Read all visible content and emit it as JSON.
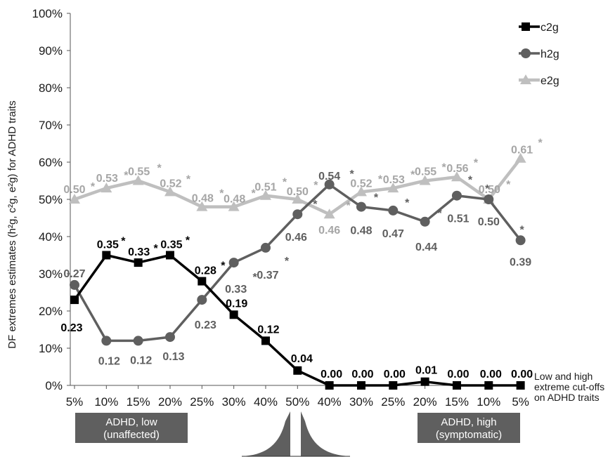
{
  "chart_data": {
    "type": "line",
    "ylabel": "DF extremes estimates (h²g, c²g, e²g) for ADHD traits",
    "categories": [
      "5%",
      "10%",
      "15%",
      "20%",
      "25%",
      "30%",
      "40%",
      "50%",
      "40%",
      "30%",
      "25%",
      "20%",
      "15%",
      "10%",
      "5%"
    ],
    "yticks": [
      "0%",
      "10%",
      "20%",
      "30%",
      "40%",
      "50%",
      "60%",
      "70%",
      "80%",
      "90%",
      "100%"
    ],
    "ylim": [
      0,
      1
    ],
    "grid": false,
    "legend_position": "top-right",
    "x_note": [
      "Low and high",
      "extreme cut-offs",
      "on ADHD traits"
    ],
    "series": [
      {
        "name": "c2g",
        "color": "#000000",
        "marker": "square",
        "values": [
          0.23,
          0.35,
          0.33,
          0.35,
          0.28,
          0.19,
          0.12,
          0.04,
          0.0,
          0.0,
          0.0,
          0.01,
          0.0,
          0.0,
          0.0
        ],
        "labels": [
          "0.23",
          "0.35",
          "0.33",
          "0.35",
          "0.28",
          "0.19",
          "0.12",
          "0.04",
          "0.00",
          "0.00",
          "0.00",
          "0.01",
          "0.00",
          "0.00",
          "0.00"
        ],
        "significant": [
          false,
          true,
          true,
          true,
          true,
          false,
          false,
          false,
          false,
          false,
          false,
          false,
          false,
          false,
          false
        ]
      },
      {
        "name": "h2g",
        "color": "#5f5f5f",
        "marker": "circle",
        "values": [
          0.27,
          0.12,
          0.12,
          0.13,
          0.23,
          0.33,
          0.37,
          0.46,
          0.54,
          0.48,
          0.47,
          0.44,
          0.51,
          0.5,
          0.39
        ],
        "labels": [
          "0.27",
          "0.12",
          "0.12",
          "0.13",
          "0.23",
          "0.33",
          "0.37",
          "0.46",
          "0.54",
          "0.48",
          "0.47",
          "0.44",
          "0.51",
          "0.50",
          "0.39"
        ],
        "significant": [
          false,
          false,
          false,
          false,
          false,
          true,
          true,
          true,
          true,
          true,
          true,
          true,
          true,
          true,
          true
        ]
      },
      {
        "name": "e2g",
        "color": "#bfbfbf",
        "marker": "triangle",
        "values": [
          0.5,
          0.53,
          0.55,
          0.52,
          0.48,
          0.48,
          0.51,
          0.5,
          0.46,
          0.52,
          0.53,
          0.55,
          0.56,
          0.5,
          0.61
        ],
        "labels": [
          "0.50",
          "0.53",
          "0.55",
          "0.52",
          "0.48",
          "0.48",
          "0.51",
          "0.50",
          "0.46",
          "0.52",
          "0.53",
          "0.55",
          "0.56",
          "0.50",
          "0.61"
        ],
        "significant": [
          true,
          true,
          true,
          true,
          true,
          true,
          true,
          true,
          true,
          true,
          true,
          true,
          true,
          true,
          true
        ]
      }
    ],
    "annotations": {
      "low_box": [
        "ADHD, low",
        "(unaffected)"
      ],
      "high_box": [
        "ADHD, high",
        "(symptomatic)"
      ],
      "star": "*"
    },
    "legend_labels": [
      "c2g",
      "h2g",
      "e2g"
    ]
  }
}
